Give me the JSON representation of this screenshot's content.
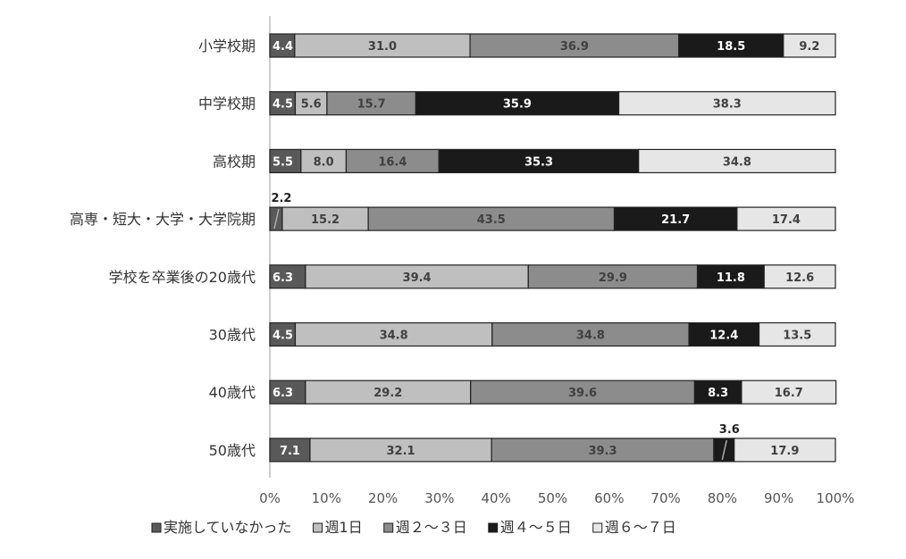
{
  "chart_data": {
    "type": "bar",
    "orientation": "horizontal",
    "stacked": "percent",
    "categories": [
      "小学校期",
      "中学校期",
      "高校期",
      "高専・短大・大学・大学院期",
      "学校を卒業後の20歳代",
      "30歳代",
      "40歳代",
      "50歳代"
    ],
    "series": [
      {
        "name": "実施していなかった",
        "color": "#595959",
        "label_color": "#ffffff",
        "values": [
          4.4,
          4.5,
          5.5,
          2.2,
          6.3,
          4.5,
          6.3,
          7.1
        ],
        "labels": [
          "4.4",
          "4.5",
          "5.5",
          "2.2",
          "6.3",
          "4.5",
          "6.3",
          "7.1"
        ]
      },
      {
        "name": "週1日",
        "color": "#bfbfbf",
        "label_color": "#404040",
        "values": [
          31.0,
          5.6,
          8.0,
          15.2,
          39.4,
          34.8,
          29.2,
          32.1
        ],
        "labels": [
          "31.0",
          "5.6",
          "8.0",
          "15.2",
          "39.4",
          "34.8",
          "29.2",
          "32.1"
        ]
      },
      {
        "name": "週２～３日",
        "color": "#8c8c8c",
        "label_color": "#404040",
        "values": [
          36.9,
          15.7,
          16.4,
          43.5,
          29.9,
          34.8,
          39.6,
          39.3
        ],
        "labels": [
          "36.9",
          "15.7",
          "16.4",
          "43.5",
          "29.9",
          "34.8",
          "39.6",
          "39.3"
        ]
      },
      {
        "name": "週４～５日",
        "color": "#1a1a1a",
        "label_color": "#ffffff",
        "values": [
          18.5,
          35.9,
          35.3,
          21.7,
          11.8,
          12.4,
          8.3,
          3.6
        ],
        "labels": [
          "18.5",
          "35.9",
          "35.3",
          "21.7",
          "11.8",
          "12.4",
          "8.3",
          "3.6"
        ]
      },
      {
        "name": "週６～７日",
        "color": "#e6e6e6",
        "label_color": "#404040",
        "values": [
          9.2,
          38.3,
          34.8,
          17.4,
          12.6,
          13.5,
          16.7,
          17.9
        ],
        "labels": [
          "9.2",
          "38.3",
          "34.8",
          "17.4",
          "12.6",
          "13.5",
          "16.7",
          "17.9"
        ]
      }
    ],
    "xlim": [
      0,
      100
    ],
    "x_ticks": [
      "0%",
      "10%",
      "20%",
      "30%",
      "40%",
      "50%",
      "60%",
      "70%",
      "80%",
      "90%",
      "100%"
    ],
    "legend_position": "bottom",
    "grid": false
  }
}
